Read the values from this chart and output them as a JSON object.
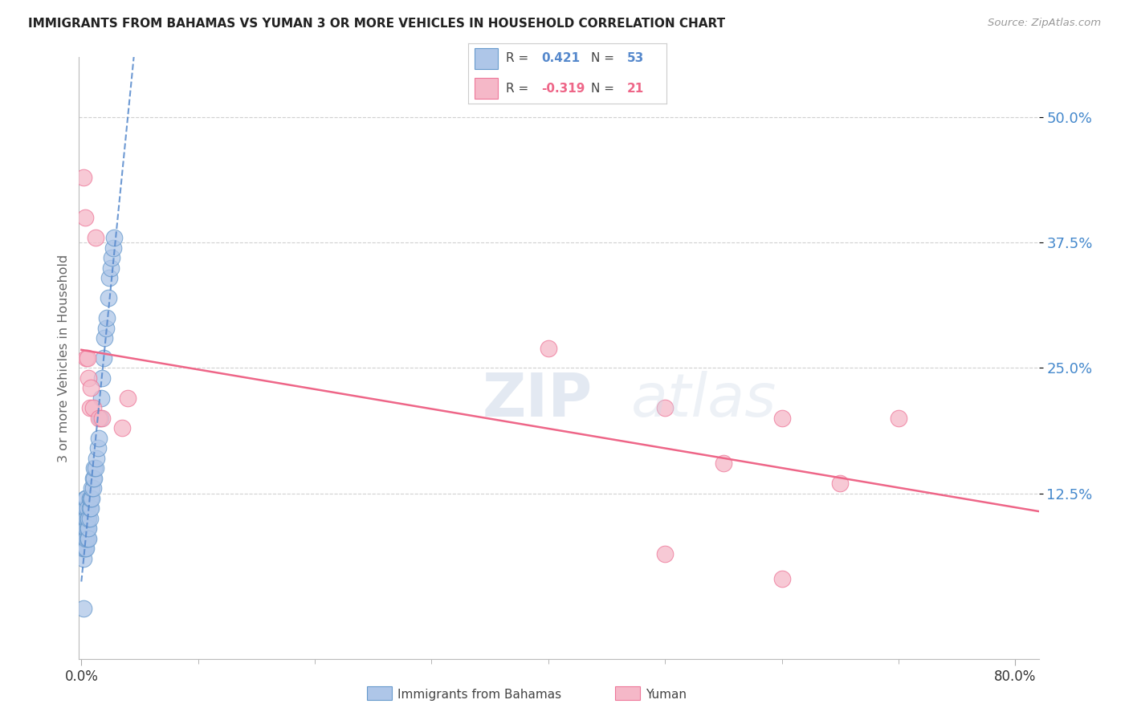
{
  "title": "IMMIGRANTS FROM BAHAMAS VS YUMAN 3 OR MORE VEHICLES IN HOUSEHOLD CORRELATION CHART",
  "source": "Source: ZipAtlas.com",
  "ylabel": "3 or more Vehicles in Household",
  "ytick_labels": [
    "50.0%",
    "37.5%",
    "25.0%",
    "12.5%"
  ],
  "ytick_values": [
    0.5,
    0.375,
    0.25,
    0.125
  ],
  "xlim": [
    -0.002,
    0.82
  ],
  "ylim": [
    -0.04,
    0.56
  ],
  "legend_blue_r": "0.421",
  "legend_blue_n": "53",
  "legend_pink_r": "-0.319",
  "legend_pink_n": "21",
  "blue_color": "#aec6e8",
  "pink_color": "#f5b8c8",
  "blue_edge_color": "#6699cc",
  "pink_edge_color": "#ee7799",
  "blue_line_color": "#5588cc",
  "pink_line_color": "#ee6688",
  "background_color": "#ffffff",
  "grid_color": "#d0d0d0",
  "blue_scatter_x": [
    0.001,
    0.001,
    0.002,
    0.002,
    0.002,
    0.003,
    0.003,
    0.003,
    0.003,
    0.003,
    0.003,
    0.004,
    0.004,
    0.004,
    0.004,
    0.004,
    0.004,
    0.005,
    0.005,
    0.005,
    0.005,
    0.006,
    0.006,
    0.006,
    0.007,
    0.007,
    0.007,
    0.008,
    0.008,
    0.009,
    0.009,
    0.01,
    0.01,
    0.011,
    0.011,
    0.012,
    0.013,
    0.014,
    0.015,
    0.016,
    0.017,
    0.018,
    0.019,
    0.02,
    0.021,
    0.022,
    0.023,
    0.024,
    0.025,
    0.026,
    0.027,
    0.028,
    0.002
  ],
  "blue_scatter_y": [
    0.07,
    0.08,
    0.06,
    0.07,
    0.08,
    0.07,
    0.08,
    0.09,
    0.1,
    0.11,
    0.12,
    0.07,
    0.08,
    0.09,
    0.1,
    0.11,
    0.12,
    0.08,
    0.09,
    0.1,
    0.11,
    0.08,
    0.09,
    0.1,
    0.1,
    0.11,
    0.12,
    0.11,
    0.12,
    0.12,
    0.13,
    0.13,
    0.14,
    0.14,
    0.15,
    0.15,
    0.16,
    0.17,
    0.18,
    0.2,
    0.22,
    0.24,
    0.26,
    0.28,
    0.29,
    0.3,
    0.32,
    0.34,
    0.35,
    0.36,
    0.37,
    0.38,
    0.01
  ],
  "pink_scatter_x": [
    0.002,
    0.003,
    0.004,
    0.005,
    0.006,
    0.007,
    0.008,
    0.01,
    0.012,
    0.015,
    0.018,
    0.035,
    0.04,
    0.4,
    0.5,
    0.55,
    0.6,
    0.65,
    0.7,
    0.5,
    0.6
  ],
  "pink_scatter_y": [
    0.44,
    0.4,
    0.26,
    0.26,
    0.24,
    0.21,
    0.23,
    0.21,
    0.38,
    0.2,
    0.2,
    0.19,
    0.22,
    0.27,
    0.21,
    0.155,
    0.2,
    0.135,
    0.2,
    0.065,
    0.04
  ],
  "watermark": "ZIPatlas"
}
